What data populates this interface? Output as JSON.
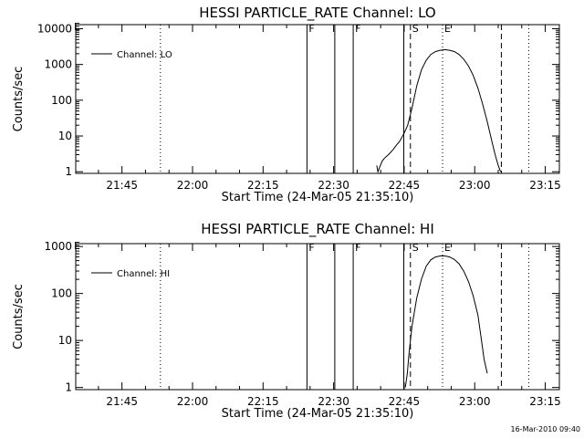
{
  "footer_timestamp": "16-Mar-2010 09:40",
  "colors": {
    "line": "#000000",
    "background": "#ffffff"
  },
  "chart_data": [
    {
      "type": "line",
      "title": "HESSI PARTICLE_RATE Channel: LO",
      "xlabel": "Start Time (24-Mar-05 21:35:10)",
      "ylabel": "Counts/sec",
      "yscale": "log",
      "xlim": [
        "21:35:10",
        "23:18:00"
      ],
      "ylim": [
        0.9,
        13000
      ],
      "xticks": [
        "21:45",
        "22:00",
        "22:15",
        "22:30",
        "22:45",
        "23:00",
        "23:15"
      ],
      "yticks": [
        "1",
        "10",
        "100",
        "1000",
        "10000"
      ],
      "legend": {
        "position": "top-left",
        "entries": [
          "Channel: LO"
        ]
      },
      "series": [
        {
          "name": "Channel: LO",
          "x": [
            "22:39:10",
            "22:39:25",
            "22:39:45",
            "22:40:20",
            "22:40:50",
            "22:41:40",
            "22:42:40",
            "22:43:20",
            "22:44:00",
            "22:44:30",
            "22:45:00",
            "22:45:45",
            "22:46:40",
            "22:47:40",
            "22:48:40",
            "22:49:40",
            "22:50:40",
            "22:51:40",
            "22:52:40",
            "22:53:40",
            "22:54:40",
            "22:55:40",
            "22:56:40",
            "22:57:40",
            "22:58:40",
            "22:59:40",
            "23:00:40",
            "23:01:40",
            "23:02:40",
            "23:03:40",
            "23:04:20",
            "23:05:00",
            "23:05:30"
          ],
          "y": [
            1.5,
            1.0,
            1.3,
            2.0,
            2.4,
            3.0,
            4.2,
            5.5,
            7.0,
            9.0,
            12,
            20,
            60,
            250,
            700,
            1300,
            1900,
            2300,
            2500,
            2600,
            2500,
            2300,
            1900,
            1400,
            900,
            500,
            220,
            80,
            25,
            7,
            3,
            1.5,
            1.0
          ]
        }
      ],
      "markers": [
        {
          "time": "21:53:10",
          "style": "dotted",
          "label": ""
        },
        {
          "time": "22:24:20",
          "style": "solid",
          "label": "F"
        },
        {
          "time": "22:30:15",
          "style": "solid",
          "label": ""
        },
        {
          "time": "22:34:10",
          "style": "solid",
          "label": "F"
        },
        {
          "time": "22:44:55",
          "style": "solid",
          "label": ""
        },
        {
          "time": "22:46:20",
          "style": "dashed",
          "label": "S"
        },
        {
          "time": "22:53:10",
          "style": "dotted",
          "label": "E"
        },
        {
          "time": "23:05:40",
          "style": "dashed",
          "label": ""
        },
        {
          "time": "23:11:30",
          "style": "dotted",
          "label": ""
        }
      ],
      "top_edge_label": "E"
    },
    {
      "type": "line",
      "title": "HESSI PARTICLE_RATE Channel: HI",
      "xlabel": "Start Time (24-Mar-05 21:35:10)",
      "ylabel": "Counts/sec",
      "yscale": "log",
      "xlim": [
        "21:35:10",
        "23:18:00"
      ],
      "ylim": [
        0.9,
        1150
      ],
      "xticks": [
        "21:45",
        "22:00",
        "22:15",
        "22:30",
        "22:45",
        "23:00",
        "23:15"
      ],
      "yticks": [
        "1",
        "10",
        "100",
        "1000"
      ],
      "legend": {
        "position": "top-left",
        "entries": [
          "Channel: HI"
        ]
      },
      "series": [
        {
          "name": "Channel: HI",
          "x": [
            "22:45:15",
            "22:45:40",
            "22:46:00",
            "22:46:40",
            "22:47:40",
            "22:48:40",
            "22:49:40",
            "22:50:40",
            "22:51:40",
            "22:52:40",
            "22:53:40",
            "22:54:40",
            "22:55:40",
            "22:56:40",
            "22:57:40",
            "22:58:40",
            "22:59:40",
            "23:00:40",
            "23:01:20",
            "23:02:00",
            "23:02:40"
          ],
          "y": [
            1.0,
            2.0,
            5,
            20,
            80,
            200,
            380,
            520,
            600,
            630,
            630,
            600,
            530,
            430,
            300,
            180,
            90,
            35,
            12,
            4,
            2
          ]
        }
      ],
      "markers": [
        {
          "time": "21:53:10",
          "style": "dotted",
          "label": ""
        },
        {
          "time": "22:24:20",
          "style": "solid",
          "label": "F"
        },
        {
          "time": "22:30:15",
          "style": "solid",
          "label": ""
        },
        {
          "time": "22:34:10",
          "style": "solid",
          "label": "F"
        },
        {
          "time": "22:44:55",
          "style": "solid",
          "label": ""
        },
        {
          "time": "22:46:20",
          "style": "dashed",
          "label": "S"
        },
        {
          "time": "22:53:10",
          "style": "dotted",
          "label": "E"
        },
        {
          "time": "23:05:40",
          "style": "dashed",
          "label": ""
        },
        {
          "time": "23:11:30",
          "style": "dotted",
          "label": ""
        }
      ],
      "top_edge_label": "E"
    }
  ]
}
